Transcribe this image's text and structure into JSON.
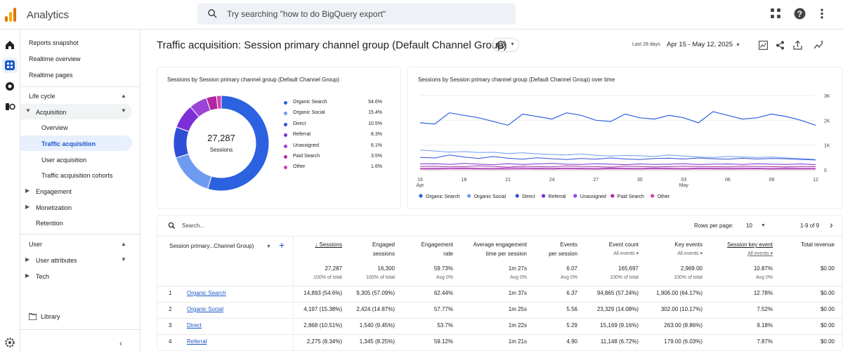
{
  "app": {
    "title": "Analytics"
  },
  "search": {
    "placeholder": "Try searching \"how to do BigQuery export\""
  },
  "nav": {
    "items": [
      "Reports snapshot",
      "Realtime overview",
      "Realtime pages"
    ],
    "lifecycle": "Life cycle",
    "acquisition": "Acquisition",
    "acq_children": [
      "Overview",
      "Traffic acquisition",
      "User acquisition",
      "Traffic acquisition cohorts"
    ],
    "engagement": "Engagement",
    "monetization": "Monetization",
    "retention": "Retention",
    "user": "User",
    "user_attributes": "User attributes",
    "tech": "Tech",
    "library": "Library"
  },
  "page": {
    "title": "Traffic acquisition: Session primary channel group (Default Channel Group)",
    "date_label": "Last 28 days",
    "date_range": "Apr 15 - May 12, 2025"
  },
  "donut": {
    "title": "Sessions by Session primary channel group (Default Channel Group)",
    "total": "27,287",
    "total_label": "Sessions",
    "legend": [
      {
        "name": "Organic Search",
        "pct": "54.6%",
        "value": 54.6,
        "color": "#2c62e0"
      },
      {
        "name": "Organic Social",
        "pct": "15.4%",
        "value": 15.4,
        "color": "#6d9bf1"
      },
      {
        "name": "Direct",
        "pct": "10.5%",
        "value": 10.5,
        "color": "#2f4fd6"
      },
      {
        "name": "Referral",
        "pct": "8.3%",
        "value": 8.3,
        "color": "#7b2fd6"
      },
      {
        "name": "Unassigned",
        "pct": "6.1%",
        "value": 6.1,
        "color": "#9b44d9"
      },
      {
        "name": "Paid Search",
        "pct": "3.5%",
        "value": 3.5,
        "color": "#b0289e"
      },
      {
        "name": "Other",
        "pct": "1.6%",
        "value": 1.6,
        "color": "#d43fb2"
      }
    ]
  },
  "chart_data": {
    "type": "line",
    "title": "Sessions by Session primary channel group (Default Channel Group) over time",
    "x_ticks": [
      "15 Apr",
      "18",
      "21",
      "24",
      "27",
      "30",
      "03 May",
      "06",
      "09",
      "12"
    ],
    "y_ticks": [
      "0",
      "1K",
      "2K",
      "3K"
    ],
    "ylim": [
      0,
      3000
    ],
    "legend_position": "bottom",
    "series": [
      {
        "name": "Organic Search",
        "color": "#2c62e0",
        "values": [
          1900,
          1850,
          2300,
          2200,
          2100,
          1950,
          1800,
          2250,
          2150,
          2050,
          2300,
          2200,
          2000,
          1950,
          2250,
          2100,
          2050,
          2200,
          2100,
          1900,
          2350,
          2200,
          2050,
          2100,
          2250,
          2150,
          2000,
          1800
        ]
      },
      {
        "name": "Organic Social",
        "color": "#6d9bf1",
        "values": [
          800,
          760,
          720,
          740,
          700,
          710,
          660,
          690,
          650,
          620,
          600,
          640,
          590,
          560,
          580,
          570,
          540,
          600,
          560,
          520,
          500,
          540,
          520,
          500,
          520,
          480,
          460,
          420
        ]
      },
      {
        "name": "Direct",
        "color": "#2f4fd6",
        "values": [
          500,
          480,
          600,
          520,
          460,
          540,
          470,
          430,
          490,
          450,
          420,
          460,
          430,
          480,
          440,
          420,
          460,
          470,
          440,
          480,
          450,
          430,
          470,
          440,
          460,
          450,
          420,
          400
        ]
      },
      {
        "name": "Referral",
        "color": "#7b2fd6",
        "values": [
          240,
          250,
          220,
          260,
          230,
          210,
          250,
          220,
          240,
          260,
          230,
          220,
          250,
          230,
          210,
          240,
          220,
          230,
          250,
          220,
          230,
          240,
          220,
          250,
          230,
          220,
          240,
          210
        ]
      },
      {
        "name": "Unassigned",
        "color": "#9b44d9",
        "values": [
          60,
          70,
          65,
          80,
          70,
          60,
          75,
          85,
          70,
          65,
          80,
          70,
          60,
          75,
          70,
          65,
          80,
          70,
          60,
          75,
          70,
          65,
          80,
          70,
          60,
          75,
          70,
          65
        ]
      },
      {
        "name": "Paid Search",
        "color": "#b0289e",
        "values": [
          140,
          150,
          120,
          130,
          160,
          140,
          110,
          150,
          130,
          120,
          160,
          140,
          130,
          110,
          150,
          140,
          120,
          130,
          150,
          140,
          130,
          120,
          150,
          140,
          130,
          120,
          140,
          130
        ]
      },
      {
        "name": "Other",
        "color": "#d43fb2",
        "values": [
          40,
          30,
          45,
          50,
          35,
          40,
          30,
          45,
          40,
          35,
          50,
          40,
          30,
          45,
          40,
          35,
          45,
          40,
          30,
          45,
          40,
          35,
          40,
          45,
          30,
          40,
          35,
          40
        ]
      }
    ]
  },
  "table": {
    "search_placeholder": "Search...",
    "rows_per_page_label": "Rows per page:",
    "rows_per_page": "10",
    "pagination": "1-9 of 9",
    "dimension_header": "Session primary...Channel Group)",
    "columns": [
      {
        "label": "Sessions",
        "sub": "",
        "total": "27,287",
        "total_sub": "100% of total"
      },
      {
        "label": "Engaged\nsessions",
        "sub": "",
        "total": "16,300",
        "total_sub": "100% of total"
      },
      {
        "label": "Engagement\nrate",
        "sub": "",
        "total": "59.73%",
        "total_sub": "Avg 0%"
      },
      {
        "label": "Average engagement\ntime per session",
        "sub": "",
        "total": "1m 27s",
        "total_sub": "Avg 0%"
      },
      {
        "label": "Events\nper session",
        "sub": "",
        "total": "6.07",
        "total_sub": "Avg 0%"
      },
      {
        "label": "Event count",
        "sub": "All events",
        "total": "165,697",
        "total_sub": "100% of total"
      },
      {
        "label": "Key events",
        "sub": "All events",
        "total": "2,969.00",
        "total_sub": "100% of total"
      },
      {
        "label": "Session key event",
        "sub": "All events",
        "total": "10.87%",
        "total_sub": "Avg 0%"
      },
      {
        "label": "Total revenue",
        "sub": "",
        "total": "$0.00",
        "total_sub": ""
      }
    ],
    "rows": [
      {
        "n": "1",
        "name": "Organic Search",
        "cells": [
          "14,893 (54.6%)",
          "9,305 (57.09%)",
          "62.44%",
          "1m 37s",
          "6.37",
          "94,865 (57.24%)",
          "1,906.00 (64.17%)",
          "12.78%",
          "$0.00"
        ]
      },
      {
        "n": "2",
        "name": "Organic Social",
        "cells": [
          "4,197 (15.38%)",
          "2,424 (14.87%)",
          "57.77%",
          "1m 25s",
          "5.56",
          "23,329 (14.08%)",
          "302.00 (10.17%)",
          "7.52%",
          "$0.00"
        ]
      },
      {
        "n": "3",
        "name": "Direct",
        "cells": [
          "2,868 (10.51%)",
          "1,540 (9.45%)",
          "53.7%",
          "1m 22s",
          "5.29",
          "15,169 (9.16%)",
          "263.00 (8.86%)",
          "9.18%",
          "$0.00"
        ]
      },
      {
        "n": "4",
        "name": "Referral",
        "cells": [
          "2,275 (8.34%)",
          "1,345 (8.25%)",
          "59.12%",
          "1m 21s",
          "4.90",
          "11,148 (6.72%)",
          "179.00 (6.03%)",
          "7.87%",
          "$0.00"
        ]
      }
    ]
  }
}
